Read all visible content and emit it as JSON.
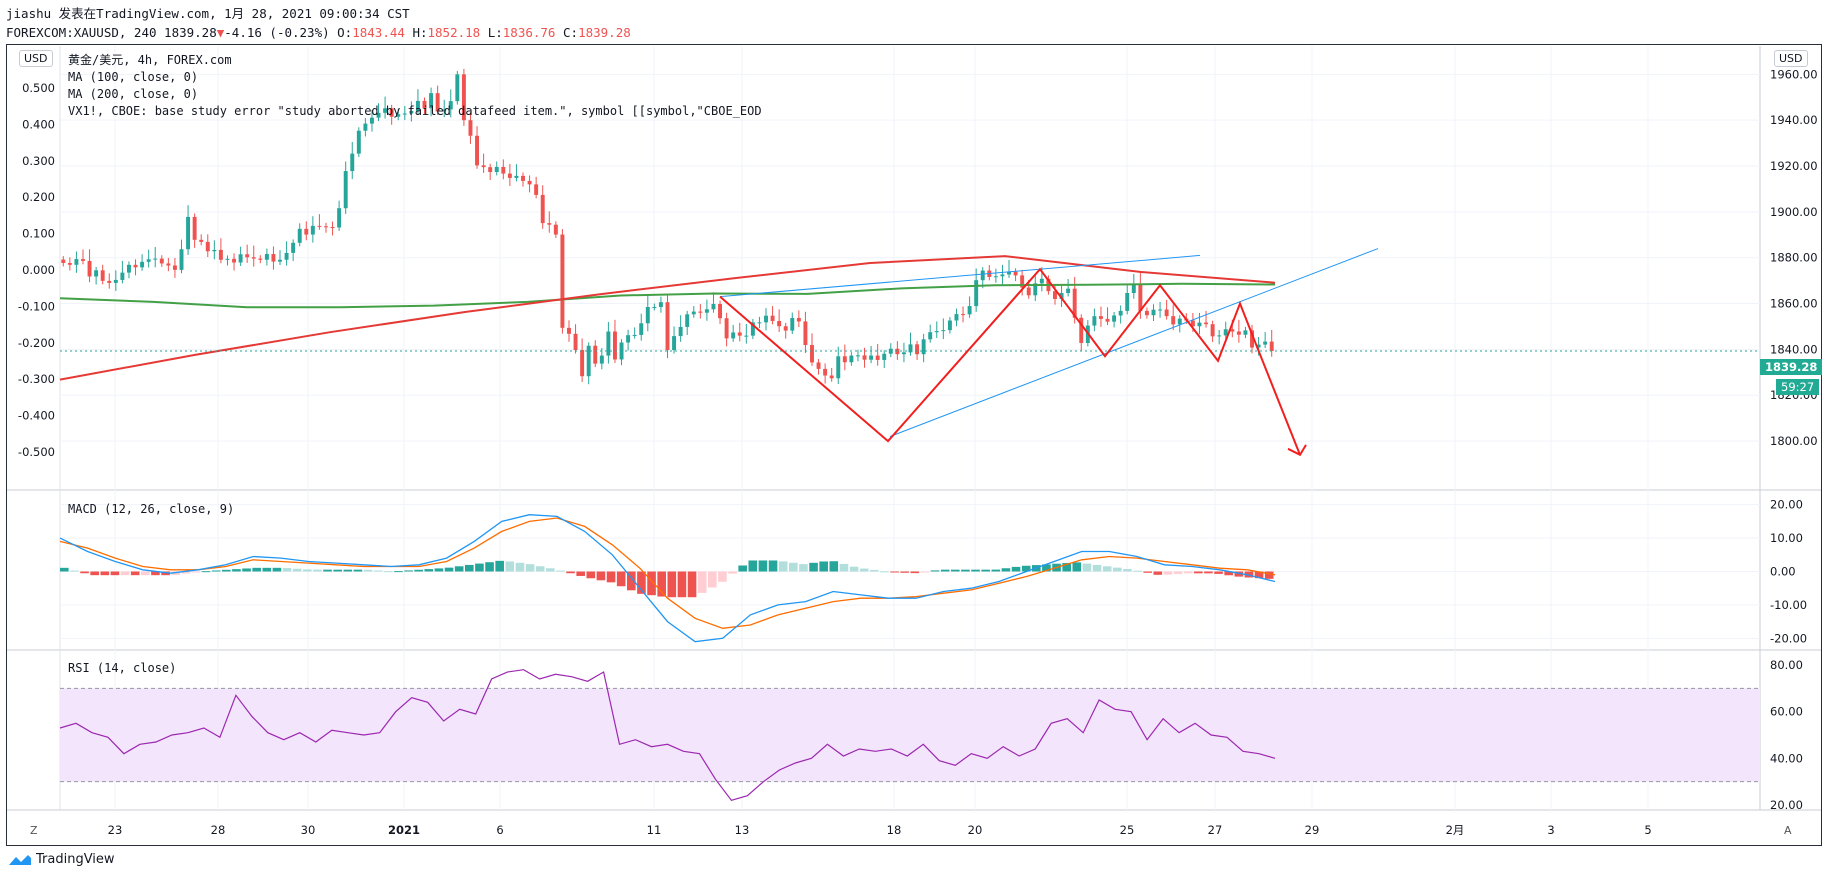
{
  "header": {
    "line1": "jiashu 发表在TradingView.com, 1月 28, 2021 09:00:34 CST",
    "symbol": "FOREXCOM:XAUUSD, 240",
    "last": "1839.28",
    "arrow": "▼",
    "change": "-4.16 (-0.23%)",
    "o_label": "O:",
    "o_val": "1843.44",
    "h_label": "H:",
    "h_val": "1852.18",
    "l_label": "L:",
    "l_val": "1836.76",
    "c_label": "C:",
    "c_val": "1839.28"
  },
  "legend": {
    "title": "黄金/美元, 4h, FOREX.com",
    "ma100": "MA (100, close, 0)",
    "ma200": "MA (200, close, 0)",
    "vx": "VX1!, CBOE: base study error \"study aborted by failed datafeed item.\", symbol [[symbol,\"CBOE_EOD",
    "macd": "MACD (12, 26, close, 9)",
    "rsi": "RSI (14, close)"
  },
  "badges": {
    "left_usd": "USD",
    "right_usd": "USD",
    "corner_left": "Z",
    "corner_right": "A"
  },
  "price_tags": {
    "last_price": "1839.28",
    "countdown": "59:27"
  },
  "branding": {
    "logo_text": "TradingView"
  },
  "colors": {
    "up": "#26a69a",
    "down": "#ef5350",
    "ma100": "#e53935",
    "ma200": "#43a047",
    "trend": "#2196f3",
    "pattern": "#f21f1f",
    "macd": "#2196f3",
    "signal": "#ff6d00",
    "rsi": "#9c27b0",
    "rsi_band": "#f3e5fc"
  },
  "chart_data": [
    {
      "type": "candlestick",
      "title": "黄金/美元, 4h, FOREX.com",
      "x_ticks": [
        "23",
        "28",
        "30",
        "2021",
        "6",
        "11",
        "13",
        "18",
        "20",
        "25",
        "27",
        "29",
        "2月",
        "3",
        "5"
      ],
      "y_right_ticks": [
        "1960.00",
        "1940.00",
        "1920.00",
        "1900.00",
        "1880.00",
        "1860.00",
        "1840.00",
        "1820.00",
        "1800.00"
      ],
      "y_left_ticks": [
        "0.500",
        "0.400",
        "0.300",
        "0.200",
        "0.100",
        "0.000",
        "-0.100",
        "-0.200",
        "-0.300",
        "-0.400",
        "-0.500"
      ],
      "ylim": [
        1790,
        1968
      ],
      "last_price": 1839.28,
      "closes": [
        1877.7,
        1876.9,
        1879.4,
        1878.6,
        1871.8,
        1874.5,
        1869.9,
        1869.0,
        1870.3,
        1873.5,
        1876.9,
        1875.8,
        1878.2,
        1879.3,
        1879.6,
        1877.5,
        1876.6,
        1874.7,
        1883.7,
        1897.8,
        1887.8,
        1886.9,
        1882.8,
        1883.4,
        1879.1,
        1879.5,
        1877.9,
        1881.5,
        1880.2,
        1879.6,
        1879.1,
        1881.6,
        1878.3,
        1879.1,
        1882.1,
        1886.5,
        1892.6,
        1890.1,
        1893.9,
        1893.7,
        1893.4,
        1893.2,
        1901.6,
        1917.8,
        1925.4,
        1935.4,
        1938.5,
        1941.1,
        1943.2,
        1945.2,
        1941.5,
        1942.6,
        1942.9,
        1944.0,
        1948.4,
        1945.2,
        1951.8,
        1943.8,
        1944.7,
        1948.3,
        1960.0,
        1940.0,
        1933.2,
        1920.3,
        1919.5,
        1917.4,
        1919.6,
        1916.7,
        1914.8,
        1915.7,
        1913.5,
        1912.0,
        1907.4,
        1895.1,
        1894.4,
        1890.1,
        1849.4,
        1846.8,
        1839.7,
        1828.3,
        1841.6,
        1833.8,
        1837.3,
        1847.8,
        1835.6,
        1843.0,
        1846.2,
        1846.3,
        1851.4,
        1858.5,
        1858.5,
        1860.6,
        1839.7,
        1845.8,
        1849.8,
        1855.3,
        1856.5,
        1856.0,
        1857.5,
        1859.8,
        1853.6,
        1844.8,
        1847.4,
        1846.0,
        1846.0,
        1851.8,
        1851.8,
        1854.7,
        1852.4,
        1850.1,
        1848.2,
        1853.7,
        1852.2,
        1841.9,
        1834.3,
        1831.5,
        1828.6,
        1827.4,
        1837.0,
        1834.4,
        1837.3,
        1837.4,
        1835.5,
        1837.3,
        1835.4,
        1838.1,
        1840.3,
        1837.9,
        1838.7,
        1842.2,
        1837.9,
        1844.4,
        1847.5,
        1848.0,
        1848.4,
        1852.6,
        1855.4,
        1855.3,
        1858.9,
        1870.2,
        1874.4,
        1871.6,
        1871.9,
        1872.7,
        1873.9,
        1872.3,
        1867.0,
        1863.6,
        1868.8,
        1870.8,
        1865.4,
        1862.0,
        1864.6,
        1866.5,
        1853.8,
        1842.8,
        1850.4,
        1854.5,
        1853.3,
        1852.1,
        1854.8,
        1856.8,
        1864.6,
        1868.7,
        1856.8,
        1854.9,
        1857.3,
        1857.4,
        1854.5,
        1850.9,
        1853.4,
        1852.6,
        1850.1,
        1851.7,
        1851.0,
        1845.7,
        1846.1,
        1848.8,
        1847.8,
        1846.4,
        1848.3,
        1840.8,
        1842.1,
        1843.4,
        1839.3
      ],
      "series": [
        {
          "name": "MA (100, close, 0)",
          "values": [
            1826.8,
            1837.6,
            1847.5,
            1856.3,
            1864.1,
            1871.1,
            1877.7,
            1880.7,
            1873.8,
            1869.1
          ]
        },
        {
          "name": "MA (200, close, 0)",
          "values": [
            1862.3,
            1860.7,
            1858.4,
            1858.4,
            1859.1,
            1860.7,
            1863.5,
            1864.4,
            1864.2,
            1866.6,
            1868.0,
            1868.2,
            1868.6,
            1868.3
          ]
        }
      ]
    },
    {
      "type": "line",
      "title": "MACD (12, 26, close, 9)",
      "y_ticks": [
        "20.00",
        "10.00",
        "0.00",
        "-10.00",
        "-20.00"
      ],
      "ylim": [
        -22,
        22
      ],
      "series": [
        {
          "name": "MACD",
          "values": [
            10.0,
            6.0,
            3.0,
            0.5,
            -0.5,
            0.5,
            2.0,
            4.5,
            4.0,
            3.0,
            2.5,
            2.0,
            1.5,
            2.0,
            4.0,
            9.0,
            15.0,
            17.0,
            16.5,
            12.0,
            5.0,
            -5.0,
            -15.0,
            -21.0,
            -20.0,
            -13.0,
            -10.0,
            -9.0,
            -6.0,
            -7.0,
            -8.0,
            -8.0,
            -6.0,
            -5.0,
            -3.0,
            0.0,
            3.0,
            6.0,
            6.0,
            4.5,
            2.0,
            1.5,
            0.5,
            -1.0,
            -3.0
          ]
        },
        {
          "name": "Signal",
          "values": [
            9.0,
            7.0,
            4.0,
            1.5,
            0.5,
            0.5,
            1.5,
            3.5,
            3.0,
            2.5,
            2.0,
            1.5,
            1.5,
            1.5,
            3.0,
            7.0,
            12.0,
            15.0,
            16.0,
            13.5,
            8.0,
            1.0,
            -8.0,
            -14.0,
            -17.0,
            -16.0,
            -13.0,
            -11.0,
            -9.0,
            -8.0,
            -8.0,
            -7.5,
            -6.5,
            -5.5,
            -3.5,
            -1.5,
            1.0,
            3.5,
            4.5,
            4.0,
            3.0,
            2.0,
            1.0,
            0.5,
            -1.0
          ]
        }
      ]
    },
    {
      "type": "line",
      "title": "RSI (14, close)",
      "y_ticks": [
        "80.00",
        "60.00",
        "40.00",
        "20.00"
      ],
      "ylim": [
        15,
        85
      ],
      "bands": [
        30,
        70
      ],
      "series": [
        {
          "name": "RSI",
          "values": [
            53,
            55,
            51,
            49,
            42,
            46,
            47,
            50,
            51,
            53,
            49,
            67,
            58,
            51,
            48,
            51,
            47,
            52,
            51,
            50,
            51,
            60,
            66,
            64,
            56,
            61,
            59,
            74,
            77,
            78,
            74,
            76,
            75,
            73,
            77,
            46,
            48,
            45,
            46,
            43,
            42,
            31,
            22,
            24,
            30,
            35,
            38,
            40,
            46,
            41,
            44,
            43,
            44,
            41,
            46,
            39,
            37,
            42,
            40,
            45,
            41,
            44,
            55,
            57,
            51,
            65,
            61,
            60,
            48,
            57,
            51,
            55,
            50,
            49,
            43,
            42,
            40
          ]
        }
      ]
    }
  ]
}
